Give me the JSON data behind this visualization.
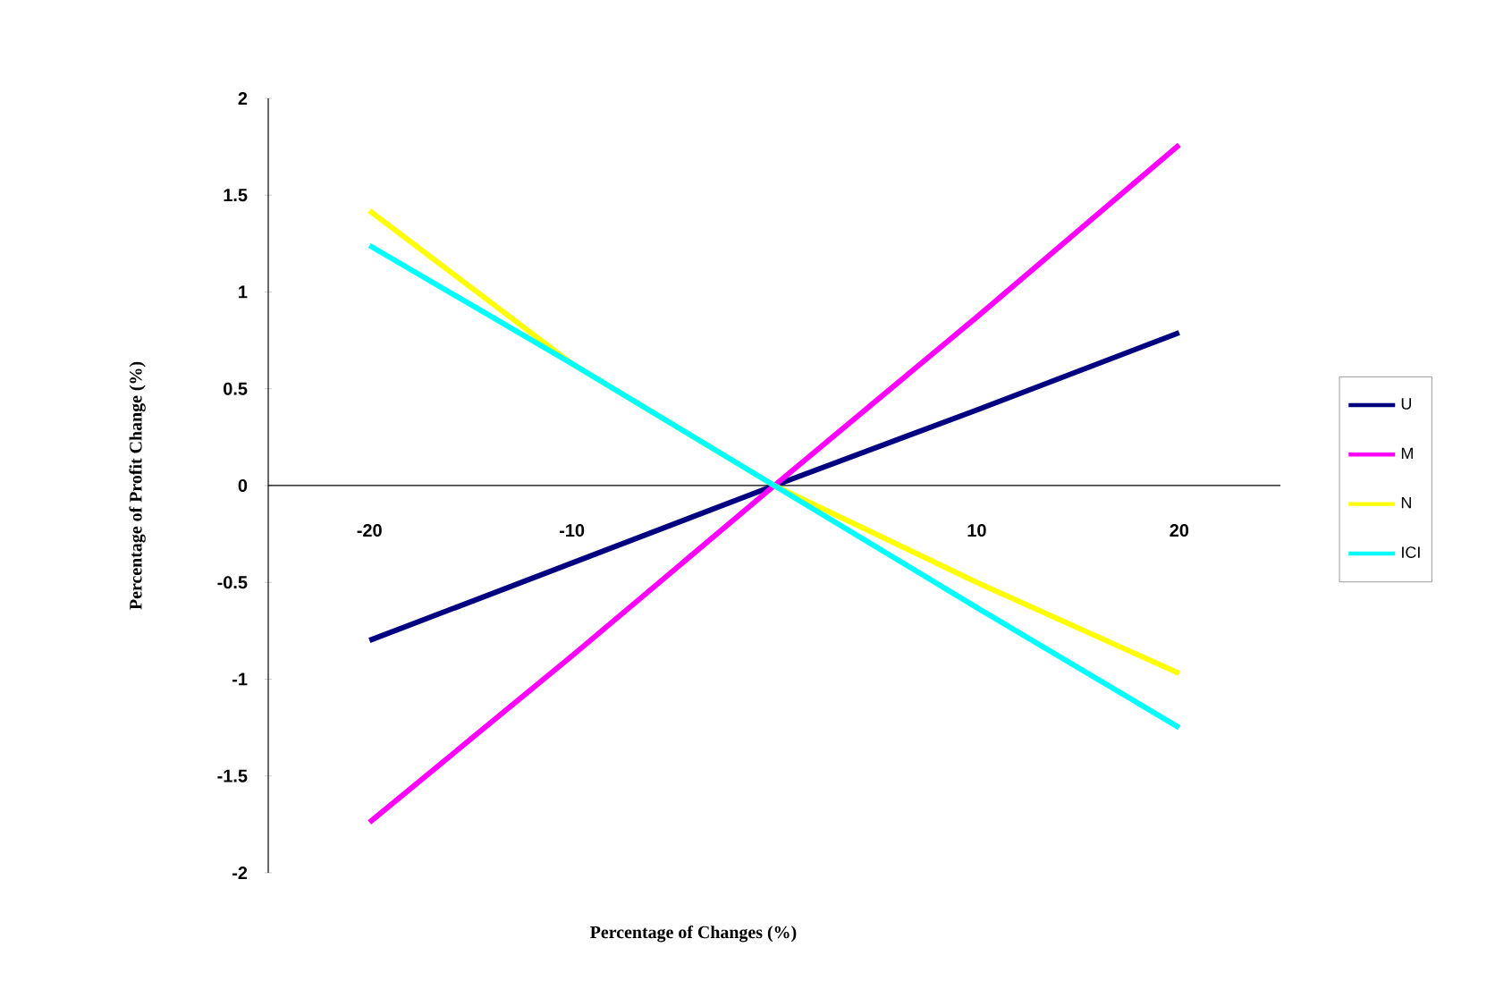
{
  "chart_data": {
    "type": "line",
    "xlabel": "Percentage of Changes (%)",
    "ylabel": "Percentage of Profit Change (%)",
    "categories": [
      "-20",
      "-10",
      null,
      "10",
      "20"
    ],
    "series": [
      {
        "name": "U",
        "color": "#000080",
        "values": [
          -0.8,
          -0.4,
          0,
          0.39,
          0.79
        ]
      },
      {
        "name": "M",
        "color": "#ff00ff",
        "values": [
          -1.74,
          -0.88,
          0,
          0.87,
          1.76
        ]
      },
      {
        "name": "N",
        "color": "#ffff00",
        "values": [
          1.42,
          0.63,
          0,
          -0.5,
          -0.97
        ]
      },
      {
        "name": "ICI",
        "color": "#00ffff",
        "values": [
          1.24,
          0.63,
          0,
          -0.63,
          -1.25
        ]
      }
    ],
    "ylim": [
      -2,
      2
    ],
    "yticks": [
      -2,
      -1.5,
      -1,
      -0.5,
      0,
      0.5,
      1,
      1.5,
      2
    ],
    "grid": false,
    "legend": "right"
  }
}
